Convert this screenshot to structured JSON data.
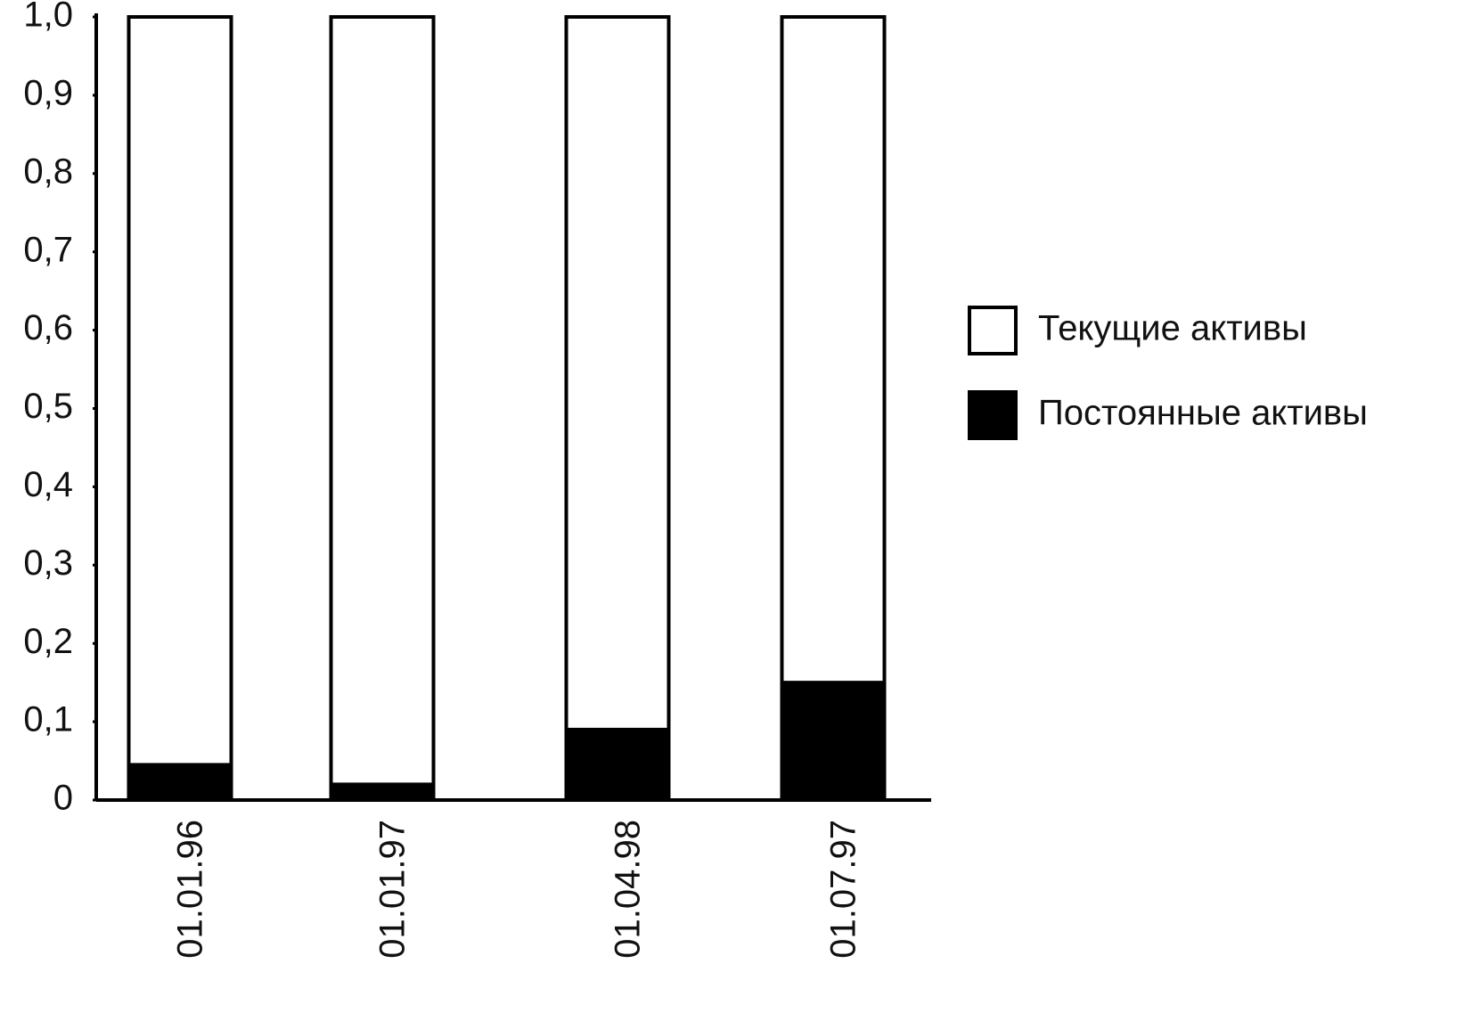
{
  "chart_data": {
    "type": "stacked_bar",
    "categories": [
      "01.01.96",
      "01.01.97",
      "01.04.98",
      "01.07.97"
    ],
    "series": [
      {
        "name": "Текущие активы",
        "color": "#ffffff",
        "values": [
          0.955,
          0.98,
          0.91,
          0.85
        ]
      },
      {
        "name": "Постоянные активы",
        "color": "#000000",
        "values": [
          0.045,
          0.02,
          0.09,
          0.15
        ]
      }
    ],
    "ylim": [
      0,
      1.0
    ],
    "yticks": [
      0,
      {
        "value": 0.1,
        "label": "0,1"
      },
      {
        "value": 0.2,
        "label": "0,2"
      },
      {
        "value": 0.3,
        "label": "0,3"
      },
      {
        "value": 0.4,
        "label": "0,4"
      },
      {
        "value": 0.5,
        "label": "0,5"
      },
      {
        "value": 0.6,
        "label": "0,6"
      },
      {
        "value": 0.7,
        "label": "0,7"
      },
      {
        "value": 0.8,
        "label": "0,8"
      },
      {
        "value": 0.9,
        "label": "0,9"
      },
      {
        "value": 1.0,
        "label": "1,0"
      }
    ],
    "grid": false,
    "legend": "right"
  }
}
